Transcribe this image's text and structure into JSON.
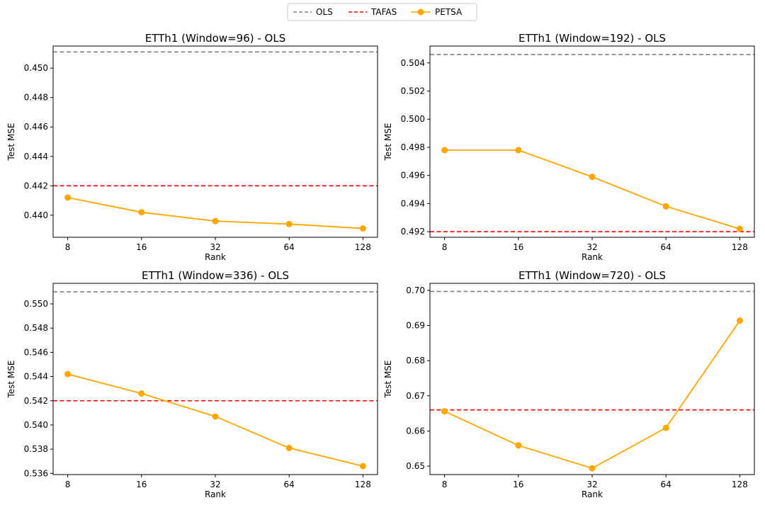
{
  "legend": {
    "items": [
      {
        "label": "OLS",
        "color": "#808080",
        "style": "dashed"
      },
      {
        "label": "TAFAS",
        "color": "#ff0000",
        "style": "dashed"
      },
      {
        "label": "PETSA",
        "color": "#ffa500",
        "style": "line-marker"
      }
    ]
  },
  "chart_data": [
    {
      "type": "line",
      "title": "ETTh1 (Window=96) - OLS",
      "xlabel": "Rank",
      "ylabel": "Test MSE",
      "categories": [
        "8",
        "16",
        "32",
        "64",
        "128"
      ],
      "ylim": [
        0.4385,
        0.4515
      ],
      "yticks": [
        "0.440",
        "0.442",
        "0.444",
        "0.446",
        "0.448",
        "0.450"
      ],
      "baselines": [
        {
          "name": "OLS",
          "value": 0.4511,
          "color": "#808080"
        },
        {
          "name": "TAFAS",
          "value": 0.442,
          "color": "#ff0000"
        }
      ],
      "series": [
        {
          "name": "PETSA",
          "color": "#ffa500",
          "values": [
            0.4412,
            0.4402,
            0.4396,
            0.4394,
            0.4391
          ]
        }
      ]
    },
    {
      "type": "line",
      "title": "ETTh1 (Window=192) - OLS",
      "xlabel": "Rank",
      "ylabel": "Test MSE",
      "categories": [
        "8",
        "16",
        "32",
        "64",
        "128"
      ],
      "ylim": [
        0.4916,
        0.5052
      ],
      "yticks": [
        "0.492",
        "0.494",
        "0.496",
        "0.498",
        "0.500",
        "0.502",
        "0.504"
      ],
      "baselines": [
        {
          "name": "OLS",
          "value": 0.5046,
          "color": "#808080"
        },
        {
          "name": "TAFAS",
          "value": 0.492,
          "color": "#ff0000"
        }
      ],
      "series": [
        {
          "name": "PETSA",
          "color": "#ffa500",
          "values": [
            0.4978,
            0.4978,
            0.4959,
            0.4938,
            0.4922
          ]
        }
      ]
    },
    {
      "type": "line",
      "title": "ETTh1 (Window=336) - OLS",
      "xlabel": "Rank",
      "ylabel": "Test MSE",
      "categories": [
        "8",
        "16",
        "32",
        "64",
        "128"
      ],
      "ylim": [
        0.5359,
        0.5517
      ],
      "yticks": [
        "0.536",
        "0.538",
        "0.540",
        "0.542",
        "0.544",
        "0.546",
        "0.548",
        "0.550"
      ],
      "baselines": [
        {
          "name": "OLS",
          "value": 0.551,
          "color": "#808080"
        },
        {
          "name": "TAFAS",
          "value": 0.542,
          "color": "#ff0000"
        }
      ],
      "series": [
        {
          "name": "PETSA",
          "color": "#ffa500",
          "values": [
            0.5442,
            0.5426,
            0.5407,
            0.5381,
            0.5366
          ]
        }
      ]
    },
    {
      "type": "line",
      "title": "ETTh1 (Window=720) - OLS",
      "xlabel": "Rank",
      "ylabel": "Test MSE",
      "categories": [
        "8",
        "16",
        "32",
        "64",
        "128"
      ],
      "ylim": [
        0.6476,
        0.702
      ],
      "yticks": [
        "0.65",
        "0.66",
        "0.67",
        "0.68",
        "0.69",
        "0.70"
      ],
      "baselines": [
        {
          "name": "OLS",
          "value": 0.6997,
          "color": "#808080"
        },
        {
          "name": "TAFAS",
          "value": 0.666,
          "color": "#ff0000"
        }
      ],
      "series": [
        {
          "name": "PETSA",
          "color": "#ffa500",
          "values": [
            0.6656,
            0.6559,
            0.6494,
            0.6609,
            0.6914
          ]
        }
      ]
    }
  ]
}
